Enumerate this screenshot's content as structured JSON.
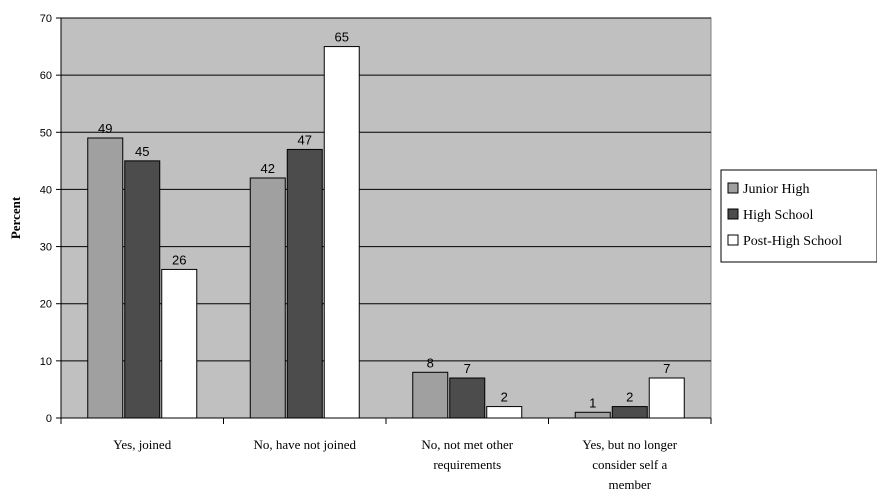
{
  "chart_data": {
    "type": "bar",
    "title": "",
    "xlabel": "",
    "ylabel": "Percent",
    "ylim": [
      0,
      70
    ],
    "yticks": [
      0,
      10,
      20,
      30,
      40,
      50,
      60,
      70
    ],
    "categories": [
      [
        "Yes, joined"
      ],
      [
        "No, have not joined"
      ],
      [
        "No, not met other",
        "requirements"
      ],
      [
        "Yes, but no longer",
        "consider self a",
        "member"
      ]
    ],
    "series": [
      {
        "name": "Junior High",
        "color": "#a0a0a0",
        "values": [
          49,
          42,
          8,
          1
        ]
      },
      {
        "name": "High School",
        "color": "#4c4c4c",
        "values": [
          45,
          47,
          7,
          2
        ]
      },
      {
        "name": "Post-High School",
        "color": "#ffffff",
        "values": [
          26,
          65,
          2,
          7
        ]
      }
    ],
    "plot_background": "#c0c0c0",
    "grid": true,
    "legend_position": "right"
  }
}
